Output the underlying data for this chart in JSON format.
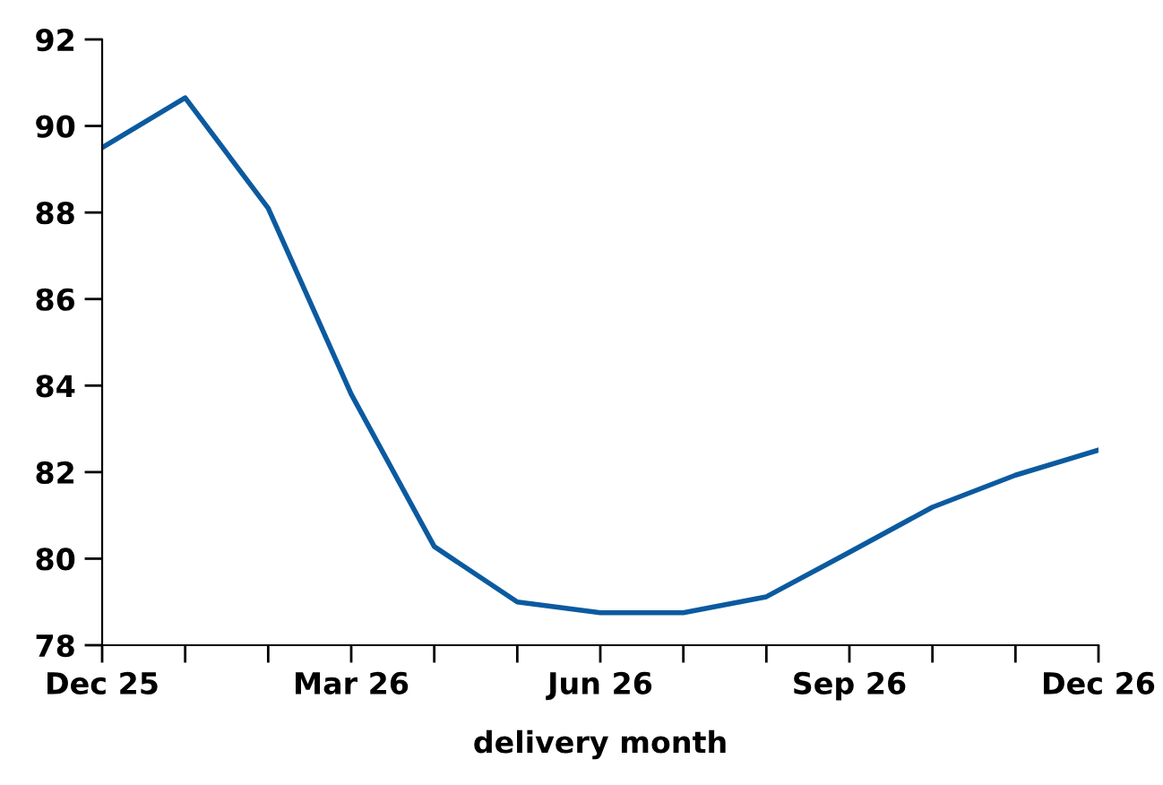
{
  "chart_data": {
    "type": "line",
    "xlabel": "delivery month",
    "categories": [
      "Dec 25",
      null,
      null,
      "Mar 26",
      null,
      null,
      "Jun 26",
      null,
      null,
      "Sep 26",
      null,
      null,
      "Dec 26"
    ],
    "series": [
      {
        "color": "#0b5aa0",
        "values": [
          89.5,
          90.65,
          88.1,
          83.8,
          80.28,
          79.0,
          78.75,
          78.75,
          79.12,
          80.15,
          81.19,
          81.93,
          82.51
        ]
      }
    ],
    "ylim": [
      78,
      92
    ],
    "yticks": [
      78,
      80,
      82,
      84,
      86,
      88,
      90,
      92
    ],
    "marker": "none",
    "line_style": "solid"
  }
}
